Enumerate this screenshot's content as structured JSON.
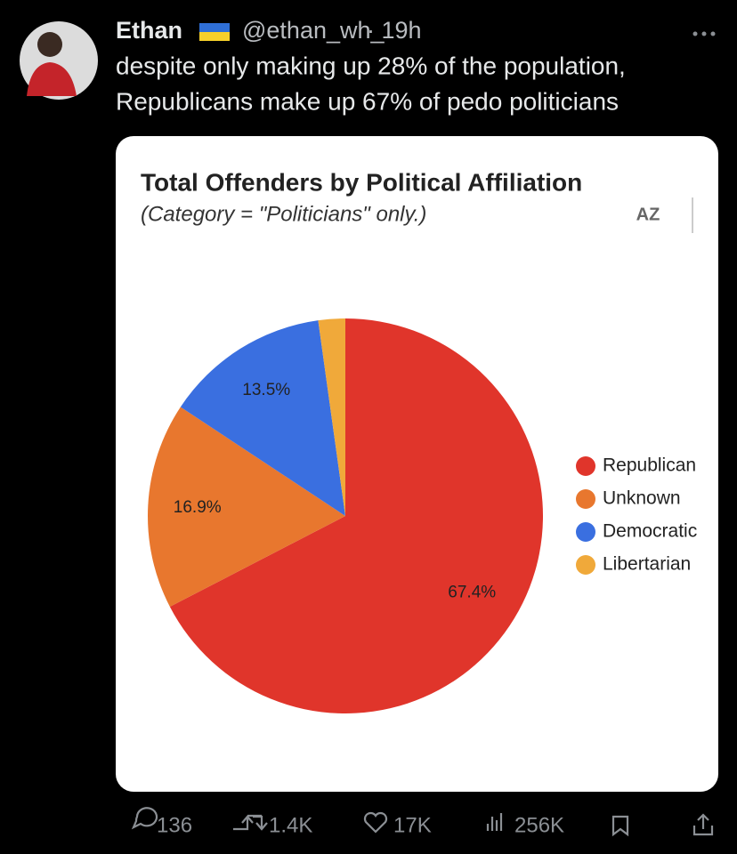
{
  "tweet": {
    "name": "Ethan",
    "handle": "@ethan_wh_",
    "time": "· 19h",
    "text_lines": [
      "despite only making up 28% of the population,",
      "Republicans make up 67% of pedo politicians"
    ],
    "replies": "136",
    "reposts": "1.4K",
    "likes": "17K",
    "views": "256K"
  },
  "chart_data": {
    "type": "pie",
    "title": "Total Offenders by Political Affiliation",
    "subtitle": "(Category = \"Politicians\" only.)",
    "categories": [
      "Republican",
      "Unknown",
      "Democratic",
      "Libertarian"
    ],
    "values": [
      67.4,
      16.9,
      13.5,
      2.2
    ],
    "value_labels": [
      "67.4%",
      "16.9%",
      "13.5%",
      null
    ],
    "colors": [
      "#e0352b",
      "#e8772e",
      "#3a6fe0",
      "#f0a93a"
    ],
    "legend": "right"
  }
}
